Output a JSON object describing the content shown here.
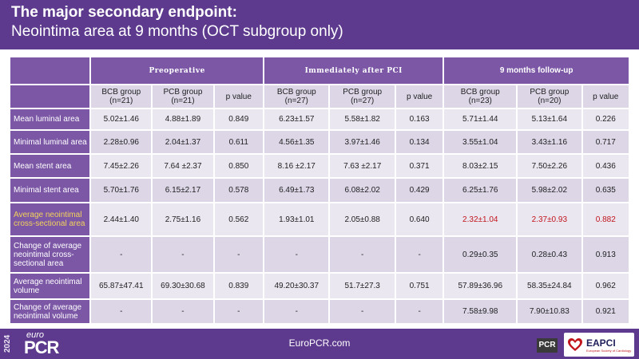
{
  "header": {
    "title": "The major secondary endpoint:",
    "subtitle": "Neointima area at 9 months (OCT subgroup only)"
  },
  "table": {
    "group_headers": [
      "Preoperative",
      "Immediately after PCI",
      "9 months follow-up"
    ],
    "sub_headers": [
      "BCB group\n(n=21)",
      "PCB group\n(n=21)",
      "p value",
      "BCB group\n(n=27)",
      "PCB group\n(n=27)",
      "p value",
      "BCB group\n(n=23)",
      "PCB group\n(n=20)",
      "p value"
    ],
    "rows": [
      {
        "label": "Mean luminal area",
        "cells": [
          "5.02±1.46",
          "4.88±1.89",
          "0.849",
          "6.23±1.57",
          "5.58±1.82",
          "0.163",
          "5.71±1.44",
          "5.13±1.64",
          "0.226"
        ]
      },
      {
        "label": "Minimal luminal area",
        "cells": [
          "2.28±0.96",
          "2.04±1.37",
          "0.611",
          "4.56±1.35",
          "3.97±1.46",
          "0.134",
          "3.55±1.04",
          "3.43±1.16",
          "0.717"
        ]
      },
      {
        "label": "Mean stent area",
        "cells": [
          "7.45±2.26",
          "7.64 ±2.37",
          "0.850",
          "8.16 ±2.17",
          "7.63 ±2.17",
          "0.371",
          "8.03±2.15",
          "7.50±2.26",
          "0.436"
        ]
      },
      {
        "label": "Minimal stent area",
        "cells": [
          "5.70±1.76",
          "6.15±2.17",
          "0.578",
          "6.49±1.73",
          "6.08±2.02",
          "0.429",
          "6.25±1.76",
          "5.98±2.02",
          "0.635"
        ]
      },
      {
        "label": "Average neointimal cross-sectional area",
        "cells": [
          "2.44±1.40",
          "2.75±1.16",
          "0.562",
          "1.93±1.01",
          "2.05±0.88",
          "0.640",
          "2.32±1.04",
          "2.37±0.93",
          "0.882"
        ]
      },
      {
        "label": "Change of average neointimal cross-sectional area",
        "cells": [
          "-",
          "-",
          "-",
          "-",
          "-",
          "-",
          "0.29±0.35",
          "0.28±0.43",
          "0.913"
        ]
      },
      {
        "label": "Average neointimal volume",
        "cells": [
          "65.87±47.41",
          "69.30±30.68",
          "0.839",
          "49.20±30.37",
          "51.7±27.3",
          "0.751",
          "57.89±36.96",
          "58.35±24.84",
          "0.962"
        ]
      },
      {
        "label": "Change of average neointimal volume",
        "cells": [
          "-",
          "-",
          "-",
          "-",
          "-",
          "-",
          "7.58±9.98",
          "7.90±10.83",
          "0.921"
        ]
      }
    ]
  },
  "footer": {
    "year": "2024",
    "logo_euro": "euro",
    "logo_pcr": "PCR",
    "site": "EuroPCR.com",
    "badge_pcr": "PCR",
    "eapci_name": "EAPCI",
    "eapci_sub": "European Society of Cardiology"
  },
  "colors": {
    "header_bg": "#5d3a8e",
    "band": "#7b57a6",
    "row_light": "#ebe7f1",
    "row_dark": "#dcd6e7",
    "highlight_label": "#f4d25a",
    "highlight_value": "#c0151b"
  }
}
